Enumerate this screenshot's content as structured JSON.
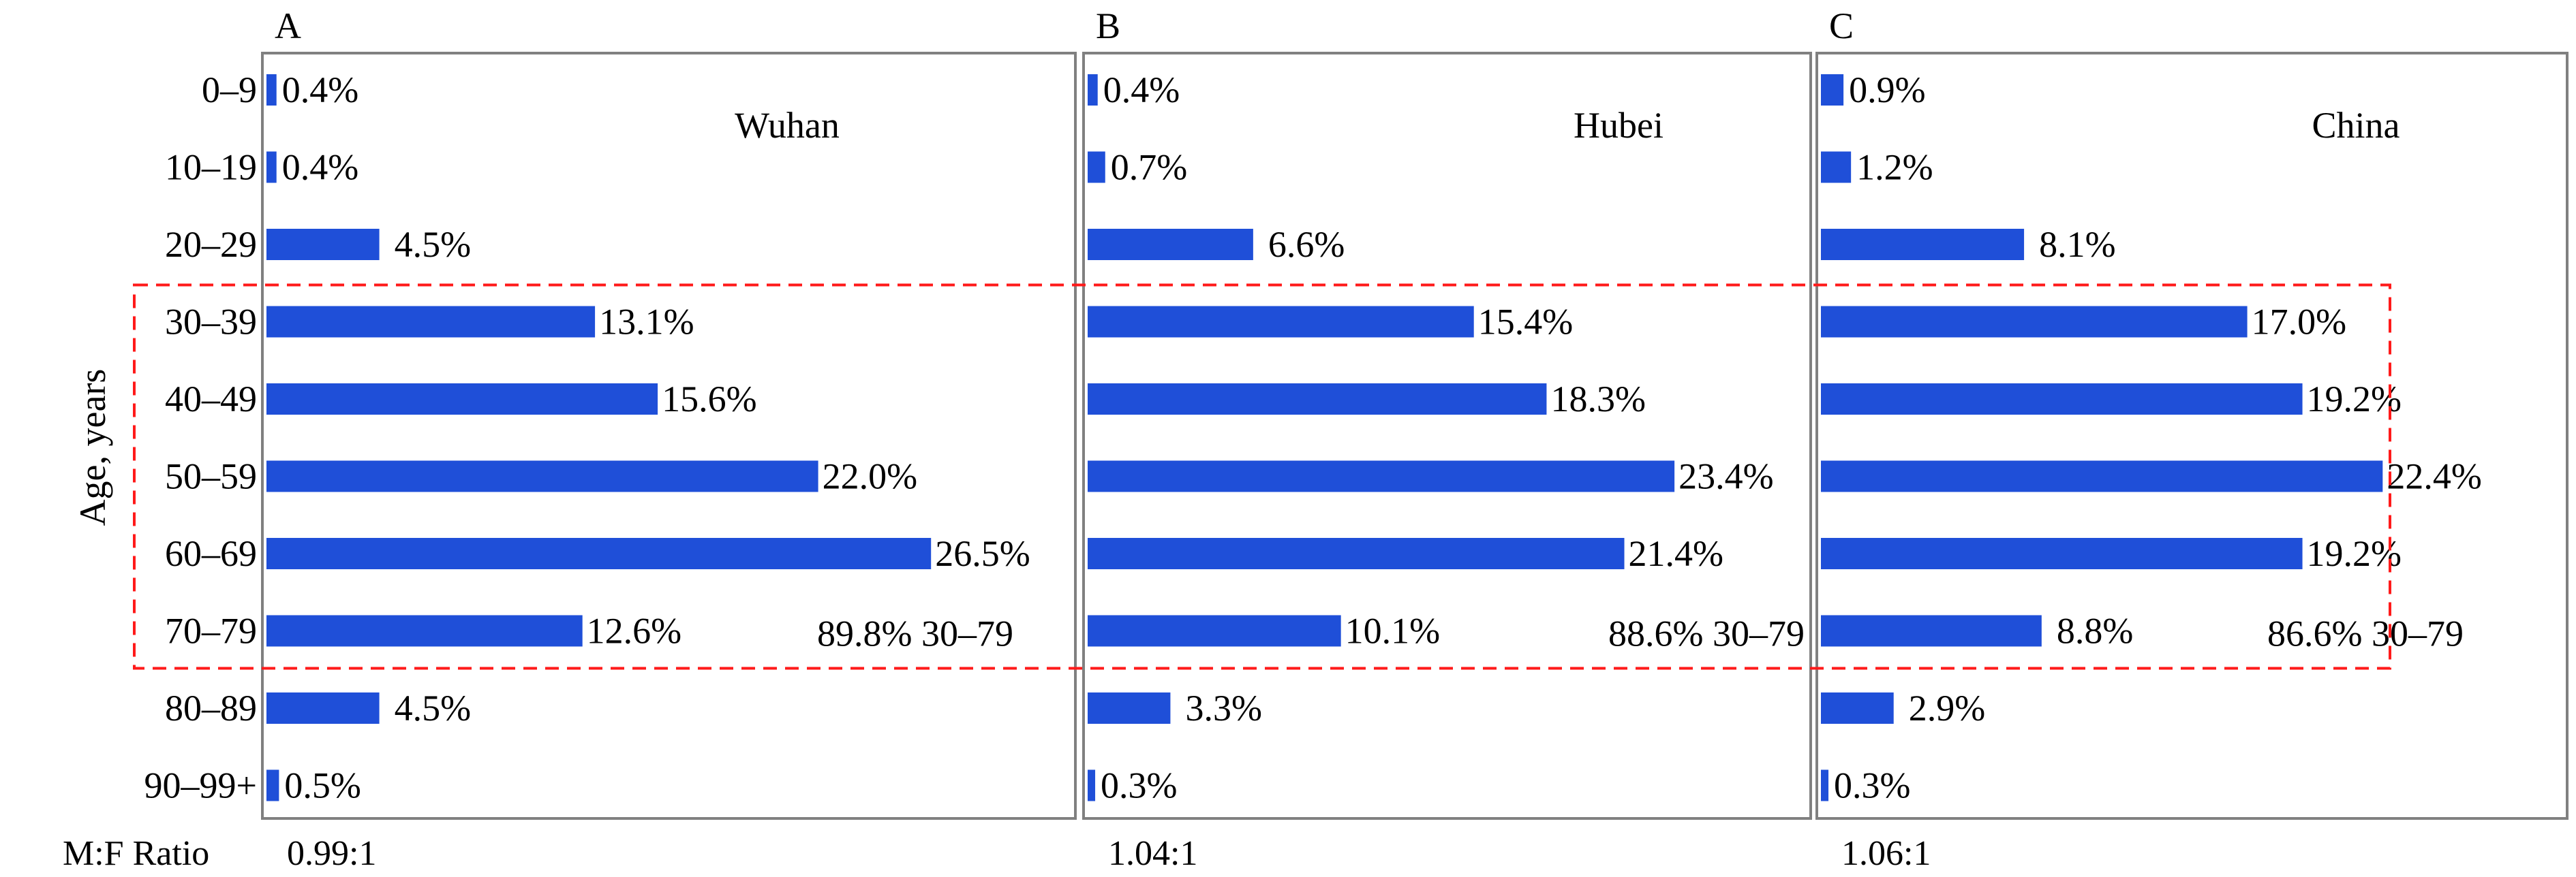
{
  "figure": {
    "y_axis_title": "Age, years",
    "ratio_label": "M:F Ratio",
    "bar_color": "#1f4fd8",
    "highlight_color": "#ff1a1a",
    "frame_color": "#808080"
  },
  "chart_data": [
    {
      "type": "bar",
      "orientation": "horizontal",
      "panel_letter": "A",
      "region": "Wuhan",
      "ylabel": "Age, years",
      "categories": [
        "0–9",
        "10–19",
        "20–29",
        "30–39",
        "40–49",
        "50–59",
        "60–69",
        "70–79",
        "80–89",
        "90–99+"
      ],
      "values": [
        0.4,
        0.4,
        4.5,
        13.1,
        15.6,
        22.0,
        26.5,
        12.6,
        4.5,
        0.5
      ],
      "value_labels": [
        "0.4%",
        "0.4%",
        "4.5%",
        "13.1%",
        "15.6%",
        "22.0%",
        "26.5%",
        "12.6%",
        "4.5%",
        "0.5%"
      ],
      "highlight": {
        "range": "30–79",
        "from_category": "30–39",
        "to_category": "70–79",
        "total_label": "89.8% 30–79"
      },
      "mf_ratio": "0.99:1",
      "xlim": [
        0,
        30
      ]
    },
    {
      "type": "bar",
      "orientation": "horizontal",
      "panel_letter": "B",
      "region": "Hubei",
      "categories": [
        "0–9",
        "10–19",
        "20–29",
        "30–39",
        "40–49",
        "50–59",
        "60–69",
        "70–79",
        "80–89",
        "90–99+"
      ],
      "values": [
        0.4,
        0.7,
        6.6,
        15.4,
        18.3,
        23.4,
        21.4,
        10.1,
        3.3,
        0.3
      ],
      "value_labels": [
        "0.4%",
        "0.7%",
        "6.6%",
        "15.4%",
        "18.3%",
        "23.4%",
        "21.4%",
        "10.1%",
        "3.3%",
        "0.3%"
      ],
      "highlight": {
        "range": "30–79",
        "from_category": "30–39",
        "to_category": "70–79",
        "total_label": "88.6% 30–79"
      },
      "mf_ratio": "1.04:1",
      "xlim": [
        0,
        30
      ]
    },
    {
      "type": "bar",
      "orientation": "horizontal",
      "panel_letter": "C",
      "region": "China",
      "categories": [
        "0–9",
        "10–19",
        "20–29",
        "30–39",
        "40–49",
        "50–59",
        "60–69",
        "70–79",
        "80–89",
        "90–99+"
      ],
      "values": [
        0.9,
        1.2,
        8.1,
        17.0,
        19.2,
        22.4,
        19.2,
        8.8,
        2.9,
        0.3
      ],
      "value_labels": [
        "0.9%",
        "1.2%",
        "8.1%",
        "17.0%",
        "19.2%",
        "22.4%",
        "19.2%",
        "8.8%",
        "2.9%",
        "0.3%"
      ],
      "highlight": {
        "range": "30–79",
        "from_category": "30–39",
        "to_category": "70–79",
        "total_label": "86.6% 30–79"
      },
      "mf_ratio": "1.06:1",
      "xlim": [
        0,
        30
      ]
    }
  ]
}
